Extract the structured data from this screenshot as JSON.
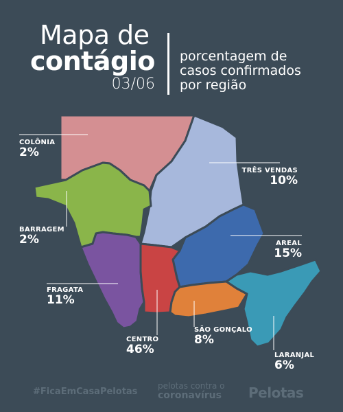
{
  "header": {
    "title_line1": "Mapa de",
    "title_line2": "contágio",
    "date": "03/06",
    "subtitle_lines": [
      "porcentagem de",
      "casos confirmados",
      "por região"
    ]
  },
  "regions": [
    {
      "id": "colonia",
      "name": "COLÔNIA",
      "percent": "2%",
      "color": "#d48f92"
    },
    {
      "id": "tres-vendas",
      "name": "TRÊS VENDAS",
      "percent": "10%",
      "color": "#a7b8dc"
    },
    {
      "id": "barragem",
      "name": "BARRAGEM",
      "percent": "2%",
      "color": "#8ab54a"
    },
    {
      "id": "areal",
      "name": "AREAL",
      "percent": "15%",
      "color": "#3d6aad"
    },
    {
      "id": "fragata",
      "name": "FRAGATA",
      "percent": "11%",
      "color": "#7a54a0"
    },
    {
      "id": "centro",
      "name": "CENTRO",
      "percent": "46%",
      "color": "#c94444"
    },
    {
      "id": "sao-goncalo",
      "name": "SÃO GONÇALO",
      "percent": "8%",
      "color": "#e0813a"
    },
    {
      "id": "laranjal",
      "name": "LARANJAL",
      "percent": "6%",
      "color": "#3a9ab6"
    }
  ],
  "footer": {
    "hashtag": "#FicaEmCasaPelotas",
    "campaign_line1": "pelotas contra o",
    "campaign_line2": "coronavírus",
    "logo": "Pelotas"
  }
}
